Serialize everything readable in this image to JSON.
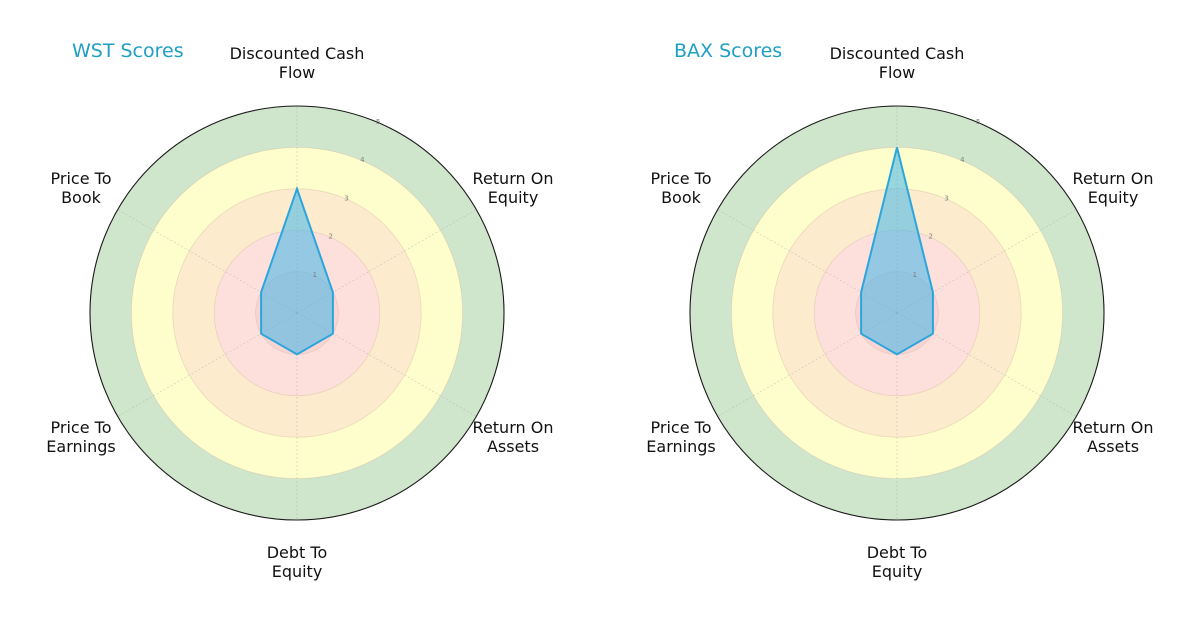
{
  "colors": {
    "title": "#1f9fc4",
    "ring_0_1": "#f8d4d3",
    "ring_1_2": "#fde0dc",
    "ring_2_3": "#fdebcd",
    "ring_3_4": "#fefdcc",
    "ring_4_5": "#cfe5cc",
    "polygon_fill": "#3fb6ea",
    "polygon_stroke": "#2aa6dd",
    "outer_border": "#1a1a1a"
  },
  "charts": [
    {
      "title": "WST Scores",
      "labels": {
        "dcf": "Discounted Cash\nFlow",
        "roe": "Return On\nEquity",
        "roa": "Return On\nAssets",
        "de": "Debt To\nEquity",
        "pe": "Price To\nEarnings",
        "pb": "Price To\nBook"
      }
    },
    {
      "title": "BAX Scores",
      "labels": {
        "dcf": "Discounted Cash\nFlow",
        "roe": "Return On\nEquity",
        "roa": "Return On\nAssets",
        "de": "Debt To\nEquity",
        "pe": "Price To\nEarnings",
        "pb": "Price To\nBook"
      }
    }
  ],
  "chart_data": [
    {
      "type": "radar",
      "title": "WST Scores",
      "categories": [
        "Discounted Cash Flow",
        "Return On Equity",
        "Return On Assets",
        "Debt To Equity",
        "Price To Earnings",
        "Price To Book"
      ],
      "values": [
        3,
        1,
        1,
        1,
        1,
        1
      ],
      "rlim": [
        0,
        5
      ],
      "rticks": [
        1,
        2,
        3,
        4,
        5
      ],
      "bands": [
        {
          "from": 0,
          "to": 1,
          "color": "#f8d4d3"
        },
        {
          "from": 1,
          "to": 2,
          "color": "#fde0dc"
        },
        {
          "from": 2,
          "to": 3,
          "color": "#fdebcd"
        },
        {
          "from": 3,
          "to": 4,
          "color": "#fefdcc"
        },
        {
          "from": 4,
          "to": 5,
          "color": "#cfe5cc"
        }
      ],
      "grid": true
    },
    {
      "type": "radar",
      "title": "BAX Scores",
      "categories": [
        "Discounted Cash Flow",
        "Return On Equity",
        "Return On Assets",
        "Debt To Equity",
        "Price To Earnings",
        "Price To Book"
      ],
      "values": [
        4,
        1,
        1,
        1,
        1,
        1
      ],
      "rlim": [
        0,
        5
      ],
      "rticks": [
        1,
        2,
        3,
        4,
        5
      ],
      "bands": [
        {
          "from": 0,
          "to": 1,
          "color": "#f8d4d3"
        },
        {
          "from": 1,
          "to": 2,
          "color": "#fde0dc"
        },
        {
          "from": 2,
          "to": 3,
          "color": "#fdebcd"
        },
        {
          "from": 3,
          "to": 4,
          "color": "#fefdcc"
        },
        {
          "from": 4,
          "to": 5,
          "color": "#cfe5cc"
        }
      ],
      "grid": true
    }
  ]
}
